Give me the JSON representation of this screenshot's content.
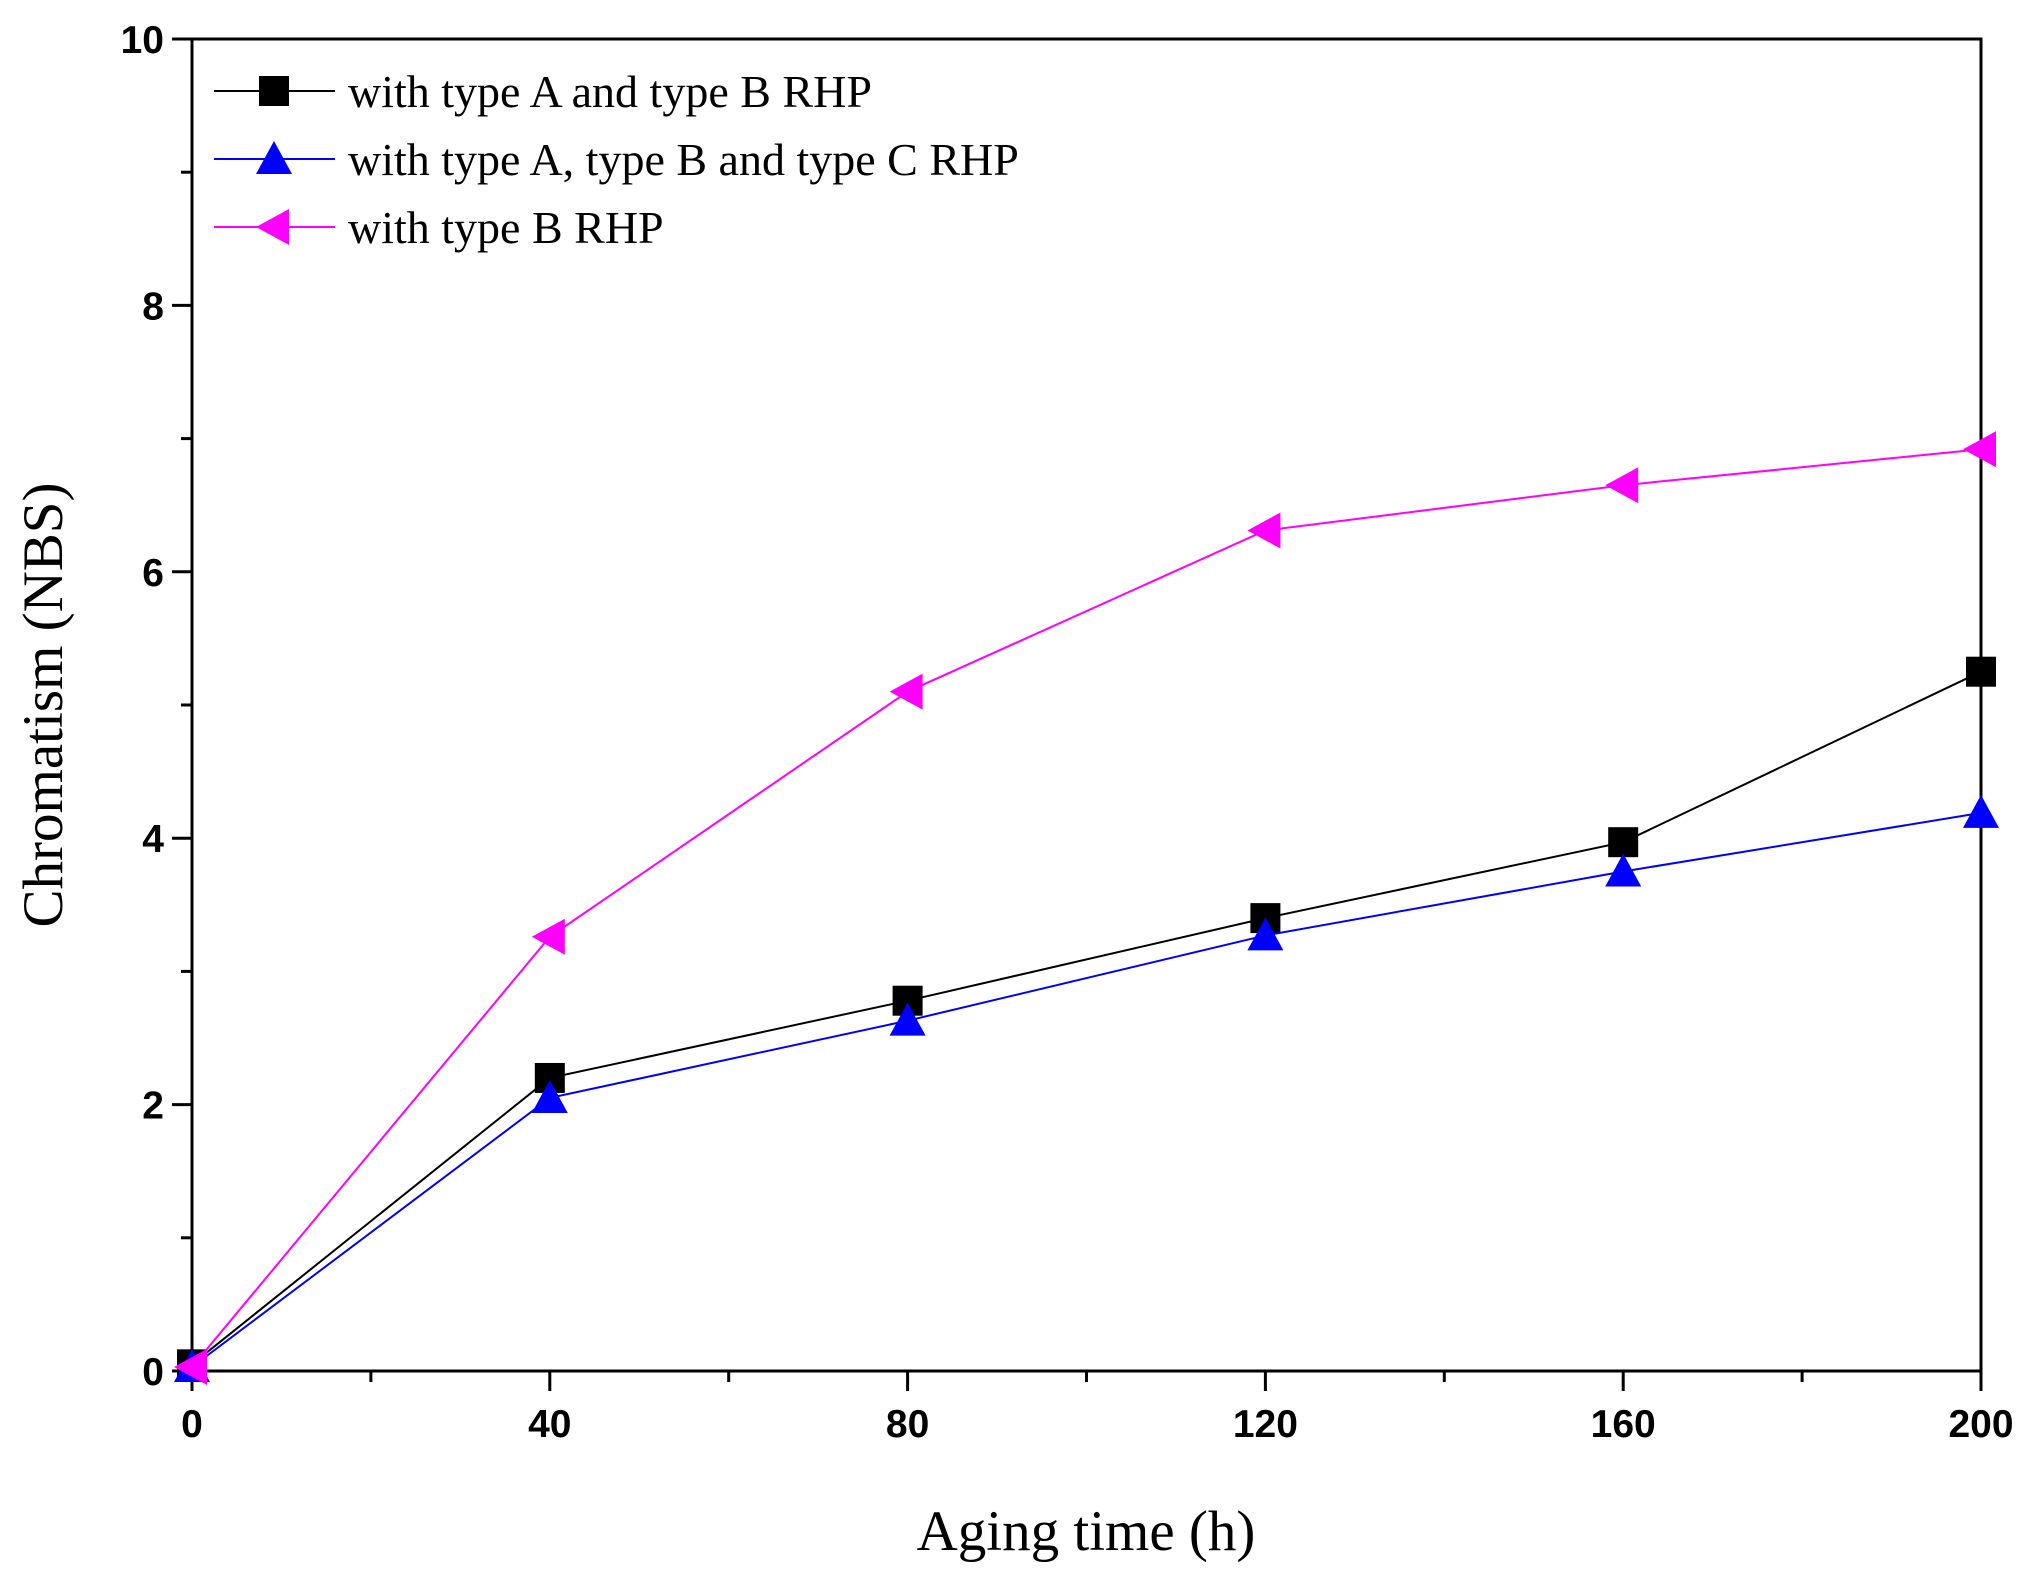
{
  "chart_data": {
    "type": "line",
    "x_label": "Aging time (h)",
    "y_label": "Chromatism (NBS)",
    "x": [
      0,
      40,
      80,
      120,
      160,
      200
    ],
    "series": [
      {
        "name": "with type A and type B RHP",
        "color": "#000000",
        "marker": "square",
        "values": [
          0.05,
          2.2,
          2.78,
          3.4,
          3.97,
          5.25
        ]
      },
      {
        "name": "with type A, type B and type C RHP",
        "color": "#0000ff",
        "marker": "triangle-up",
        "values": [
          0.03,
          2.05,
          2.63,
          3.27,
          3.75,
          4.19
        ]
      },
      {
        "name": "with type B RHP",
        "color": "#ff00ff",
        "marker": "triangle-left",
        "values": [
          0.03,
          3.26,
          5.1,
          6.31,
          6.65,
          6.92
        ]
      }
    ],
    "xlim": [
      0,
      200
    ],
    "xticks": [
      0,
      40,
      80,
      120,
      160,
      200
    ],
    "ylim": [
      0,
      10
    ],
    "yticks": [
      0,
      2,
      4,
      6,
      8,
      10
    ],
    "legend": "upper-left"
  }
}
